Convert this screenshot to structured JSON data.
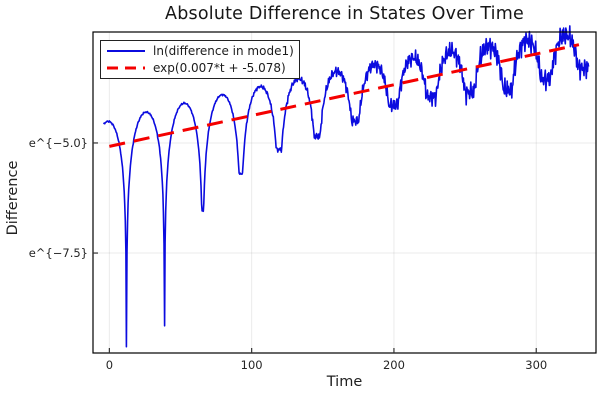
{
  "title": "Absolute Difference in States Over Time",
  "chart_data": {
    "type": "line",
    "title": "Absolute Difference in States Over Time",
    "xlabel": "Time",
    "ylabel": "Difference",
    "y_scale": "log (natural), tick labels rendered as e^{value}",
    "xlim": [
      -11.5,
      342
    ],
    "ylim_ln": [
      -9.77,
      -2.48
    ],
    "x_ticks": [
      {
        "value": 0,
        "label": "0"
      },
      {
        "value": 100,
        "label": "100"
      },
      {
        "value": 200,
        "label": "200"
      },
      {
        "value": 300,
        "label": "300"
      }
    ],
    "y_ticks": [
      {
        "value": -5.0,
        "label": "e^{−5.0}"
      },
      {
        "value": -7.5,
        "label": "e^{−7.5}"
      }
    ],
    "grid": true,
    "legend_position": "top-left",
    "frame_color": "#000000",
    "grid_color": "rgba(0,0,0,0.08)",
    "tick_color": "#333333",
    "series": [
      {
        "name": "ln(difference in mode1)",
        "color": "#0b0bdf",
        "style": "solid",
        "width": 1.6,
        "model": {
          "description": "ln|difference| of an oscillating mode: rising envelope with ln|sin| arcs, cusp dips every ~27 time units (early dips very deep, later dips shallow), noise amplitude growing with t",
          "t_start": -4,
          "t_end": 337,
          "step": 0.4,
          "envelope": {
            "a": -4.5,
            "b": 0.008,
            "c": -6e-06
          },
          "dips": {
            "t0": 12,
            "period": 26.8,
            "floors": [
              -9.64,
              -9.16,
              -6.55,
              -5.7,
              -5.15,
              -4.85,
              -4.5,
              -4.15,
              -3.95,
              -3.85,
              -3.8,
              -3.55,
              -3.3
            ]
          },
          "noise": {
            "base": 0.015,
            "grow": 0.17,
            "t_onset": 90,
            "ramp": 170,
            "freqs": [
              2.9,
              4.7,
              7.3
            ],
            "phases": [
              0,
              1.3,
              2.1
            ]
          }
        }
      },
      {
        "name": "exp(0.007*t + -5.078)",
        "color": "#f40000",
        "style": "dashed",
        "width": 3,
        "dash": "16 9",
        "fit": {
          "slope": 0.007,
          "intercept": -5.078,
          "t_start": 0,
          "t_end": 330
        }
      }
    ]
  }
}
